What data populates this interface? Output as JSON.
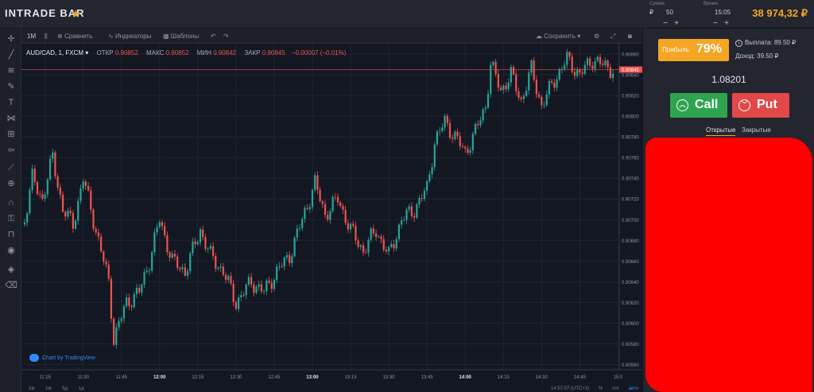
{
  "topbar": {
    "logo": "INTRADE BAR",
    "amount_label": "Сумма",
    "amount_currency": "₽",
    "amount_value": "50",
    "time_label": "Время",
    "time_value": "15:05",
    "minus": "−",
    "plus": "+",
    "balance": "38 974,32 ₽",
    "accent": "#f5a623"
  },
  "chart_toolbar": {
    "timeframe": "1M",
    "compare": "Сравнить",
    "indicators": "Индикаторы",
    "templates": "Шаблоны",
    "save": "Сохранить"
  },
  "legend": {
    "symbol": "AUD/CAD, 1, FXCM",
    "open_label": "ОТКР",
    "open": "0.90852",
    "high_label": "МАКС",
    "high": "0.90852",
    "low_label": "МИН",
    "low": "0.90842",
    "close_label": "ЗАКР",
    "close": "0.90845",
    "change": "−0.00007 (−0.01%)"
  },
  "tradingview_badge": "Chart by TradingView",
  "bottom_timeframes": [
    "1м",
    "1м",
    "5д",
    "1д"
  ],
  "bottom_right": [
    "14:57:07 (UTC+3)",
    "%",
    "лог",
    "авто"
  ],
  "chart_data": {
    "type": "candlestick",
    "x_ticks": [
      "11:15",
      "11:30",
      "11:45",
      "12:00",
      "12:15",
      "12:30",
      "12:45",
      "13:00",
      "13:15",
      "13:30",
      "13:45",
      "14:00",
      "14:15",
      "14:30",
      "14:45",
      "15:0"
    ],
    "bold_ticks": [
      "12:00",
      "13:00",
      "14:00"
    ],
    "y_ticks": [
      "0.90860",
      "0.90840",
      "0.90820",
      "0.90800",
      "0.90780",
      "0.90760",
      "0.90740",
      "0.90720",
      "0.90700",
      "0.90680",
      "0.90660",
      "0.90640",
      "0.90620",
      "0.90600",
      "0.90580",
      "0.90560"
    ],
    "ylim": [
      0.90555,
      0.9087
    ],
    "x_range": [
      "11:07",
      "14:58"
    ],
    "current_price": 0.90845,
    "current_price_label": "0.90845",
    "up_color": "#26a69a",
    "down_color": "#ef5350",
    "grid": true,
    "close_keypoints": [
      [
        "11:07",
        0.907
      ],
      [
        "11:10",
        0.9074
      ],
      [
        "11:14",
        0.9072
      ],
      [
        "11:18",
        0.9076
      ],
      [
        "11:22",
        0.9071
      ],
      [
        "11:26",
        0.90695
      ],
      [
        "11:30",
        0.9074
      ],
      [
        "11:35",
        0.9069
      ],
      [
        "11:40",
        0.9064
      ],
      [
        "11:42",
        0.90585
      ],
      [
        "11:47",
        0.9062
      ],
      [
        "11:52",
        0.9063
      ],
      [
        "11:56",
        0.9066
      ],
      [
        "12:00",
        0.907
      ],
      [
        "12:05",
        0.9066
      ],
      [
        "12:10",
        0.9065
      ],
      [
        "12:16",
        0.9069
      ],
      [
        "12:20",
        0.90665
      ],
      [
        "12:25",
        0.9065
      ],
      [
        "12:30",
        0.9062
      ],
      [
        "12:36",
        0.9064
      ],
      [
        "12:41",
        0.9063
      ],
      [
        "12:46",
        0.9065
      ],
      [
        "12:51",
        0.90665
      ],
      [
        "12:56",
        0.907
      ],
      [
        "13:01",
        0.90735
      ],
      [
        "13:05",
        0.90705
      ],
      [
        "13:10",
        0.9072
      ],
      [
        "13:15",
        0.9069
      ],
      [
        "13:20",
        0.9067
      ],
      [
        "13:25",
        0.9069
      ],
      [
        "13:30",
        0.90665
      ],
      [
        "13:35",
        0.907
      ],
      [
        "13:40",
        0.9071
      ],
      [
        "13:45",
        0.9073
      ],
      [
        "13:48",
        0.90775
      ],
      [
        "13:52",
        0.90795
      ],
      [
        "13:56",
        0.9078
      ],
      [
        "14:00",
        0.90765
      ],
      [
        "14:04",
        0.90785
      ],
      [
        "14:08",
        0.9081
      ],
      [
        "14:10",
        0.9085
      ],
      [
        "14:14",
        0.90825
      ],
      [
        "14:18",
        0.9084
      ],
      [
        "14:22",
        0.90815
      ],
      [
        "14:26",
        0.90845
      ],
      [
        "14:30",
        0.9081
      ],
      [
        "14:35",
        0.90835
      ],
      [
        "14:40",
        0.90855
      ],
      [
        "14:45",
        0.9084
      ],
      [
        "14:50",
        0.90855
      ],
      [
        "14:55",
        0.90848
      ],
      [
        "14:58",
        0.90845
      ]
    ]
  },
  "right_panel": {
    "profit_label": "Прибыль",
    "profit_pct": "79%",
    "payout": "Выплата: 89.50 ₽",
    "income": "Доход: 39.50 ₽",
    "price": "1.08201",
    "call": "Call",
    "put": "Put",
    "tab_open": "Открытые",
    "tab_closed": "Закрытые",
    "call_color": "#2fa44f",
    "put_color": "#e24848",
    "redaction_color": "#ff0000"
  }
}
